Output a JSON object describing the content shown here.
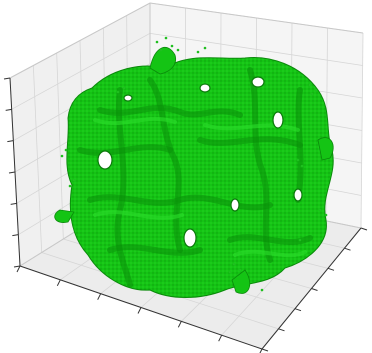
{
  "chart_data": {
    "type": "3d-isosurface",
    "projection": "3d",
    "title": "",
    "xlabel": "",
    "ylabel": "",
    "zlabel": "",
    "grid": true,
    "tick_labels_shown": false,
    "xticks_count": 7,
    "yticks_count": 7,
    "zticks_count": 7,
    "surface_color": "#10cc10",
    "surface_shadow_color": "#0a8f0a",
    "surface_highlight_color": "#2be02b",
    "pane_color": "#f2f2f2",
    "pane_side_color": "#e9e9e9",
    "grid_color": "#d6d6d6",
    "axis_line_color": "#333333"
  }
}
